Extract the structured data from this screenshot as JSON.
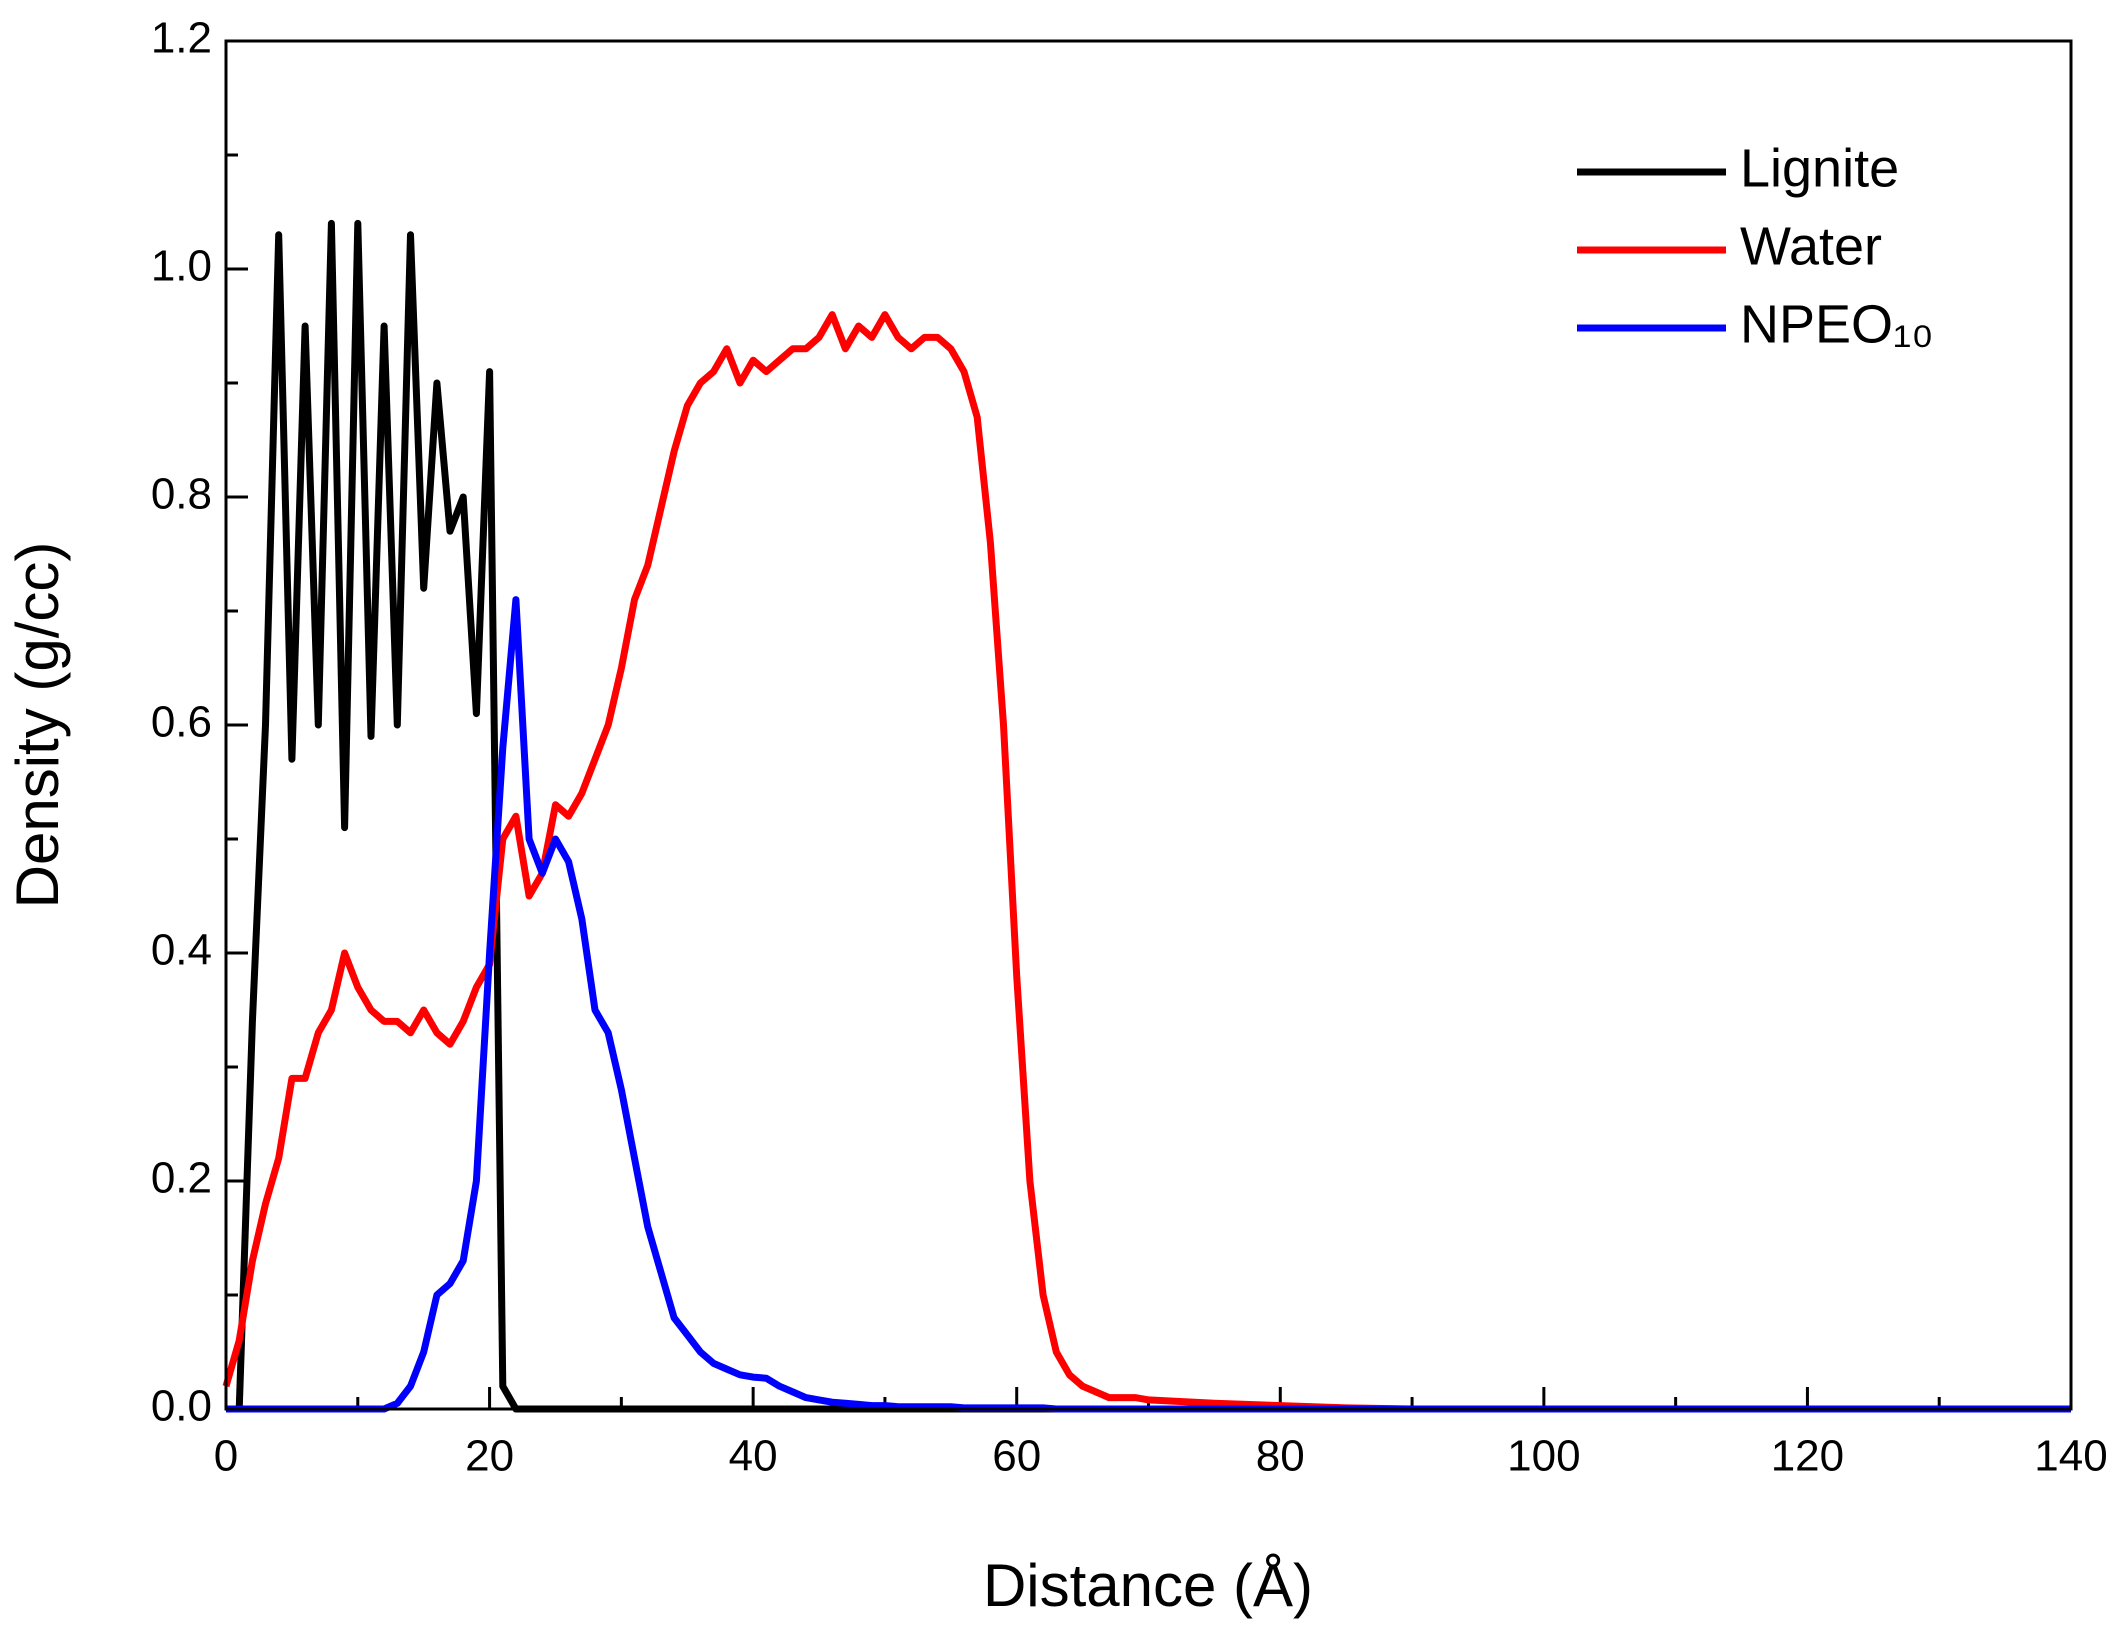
{
  "chart_data": {
    "type": "line",
    "xlabel": "Distance (Å)",
    "ylabel": "Density (g/cc)",
    "x": [
      0,
      1,
      2,
      3,
      4,
      5,
      6,
      7,
      8,
      9,
      10,
      11,
      12,
      13,
      14,
      15,
      16,
      17,
      18,
      19,
      20,
      21,
      22,
      23,
      24,
      25,
      26,
      27,
      28,
      29,
      30,
      31,
      32,
      33,
      34,
      35,
      36,
      37,
      38,
      39,
      40,
      41,
      42,
      43,
      44,
      45,
      46,
      47,
      48,
      49,
      50,
      51,
      52,
      53,
      54,
      55,
      56,
      57,
      58,
      59,
      60,
      61,
      62,
      63,
      64,
      65,
      66,
      67,
      68,
      69,
      70,
      75,
      80,
      85,
      90,
      100,
      110,
      120,
      130,
      140
    ],
    "series": [
      {
        "name": "Lignite",
        "color": "#000000",
        "values": [
          0,
          0,
          0.34,
          0.6,
          1.03,
          0.57,
          0.95,
          0.6,
          1.04,
          0.51,
          1.04,
          0.59,
          0.95,
          0.6,
          1.03,
          0.72,
          0.9,
          0.77,
          0.8,
          0.61,
          0.91,
          0.02,
          0,
          0,
          0,
          0,
          0,
          0,
          0,
          0,
          0,
          0,
          0,
          0,
          0,
          0,
          0,
          0,
          0,
          0,
          0,
          0,
          0,
          0,
          0,
          0,
          0,
          0,
          0,
          0,
          0,
          0,
          0,
          0,
          0,
          0,
          0,
          0,
          0,
          0,
          0,
          0,
          0,
          0,
          0,
          0,
          0,
          0,
          0,
          0,
          0,
          0,
          0,
          0,
          0,
          0,
          0,
          0,
          0,
          0
        ]
      },
      {
        "name": "Water",
        "color": "#ff0000",
        "values": [
          0.02,
          0.06,
          0.13,
          0.18,
          0.22,
          0.29,
          0.29,
          0.33,
          0.35,
          0.4,
          0.37,
          0.35,
          0.34,
          0.34,
          0.33,
          0.35,
          0.33,
          0.32,
          0.34,
          0.37,
          0.39,
          0.5,
          0.52,
          0.45,
          0.47,
          0.53,
          0.52,
          0.54,
          0.57,
          0.6,
          0.65,
          0.71,
          0.74,
          0.79,
          0.84,
          0.88,
          0.9,
          0.91,
          0.93,
          0.9,
          0.92,
          0.91,
          0.92,
          0.93,
          0.93,
          0.94,
          0.96,
          0.93,
          0.95,
          0.94,
          0.96,
          0.94,
          0.93,
          0.94,
          0.94,
          0.93,
          0.91,
          0.87,
          0.76,
          0.6,
          0.38,
          0.2,
          0.1,
          0.05,
          0.03,
          0.02,
          0.015,
          0.01,
          0.01,
          0.01,
          0.008,
          0.005,
          0.003,
          0.001,
          0,
          0,
          0,
          0,
          0,
          0
        ]
      },
      {
        "name": "NPEO₁₀",
        "color": "#0000ff",
        "values": [
          0,
          0,
          0,
          0,
          0,
          0,
          0,
          0,
          0,
          0,
          0,
          0,
          0,
          0.005,
          0.02,
          0.05,
          0.1,
          0.11,
          0.13,
          0.2,
          0.4,
          0.58,
          0.71,
          0.5,
          0.47,
          0.5,
          0.48,
          0.43,
          0.35,
          0.33,
          0.28,
          0.22,
          0.16,
          0.12,
          0.08,
          0.065,
          0.05,
          0.04,
          0.035,
          0.03,
          0.028,
          0.027,
          0.02,
          0.015,
          0.01,
          0.008,
          0.006,
          0.005,
          0.004,
          0.003,
          0.003,
          0.002,
          0.002,
          0.002,
          0.002,
          0.002,
          0.001,
          0.001,
          0.001,
          0.001,
          0.001,
          0.001,
          0.001,
          0,
          0,
          0,
          0,
          0,
          0,
          0,
          0,
          0,
          0,
          0,
          0,
          0,
          0,
          0,
          0,
          0
        ]
      }
    ],
    "xlim": [
      0,
      140
    ],
    "xticks": [
      0,
      20,
      40,
      60,
      80,
      100,
      120,
      140
    ],
    "ylim": [
      0,
      1.2
    ],
    "yticks": [
      {
        "value": 0,
        "label": "0.0"
      },
      0.2,
      0.4,
      0.6,
      0.8,
      {
        "value": 1,
        "label": "1.0"
      },
      1.2
    ],
    "legend": "upper right",
    "grid": false
  }
}
